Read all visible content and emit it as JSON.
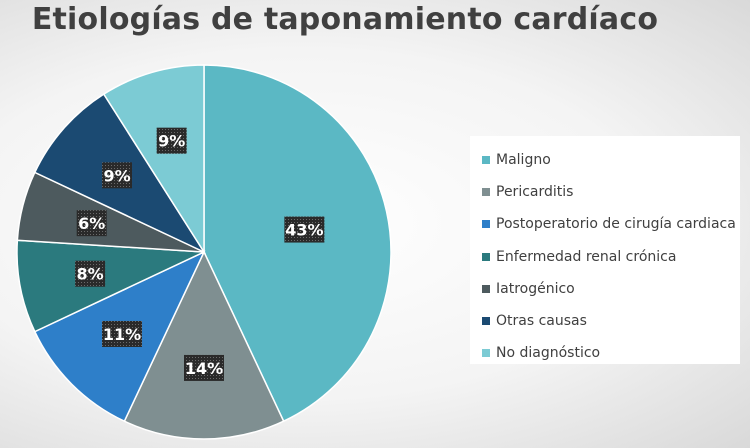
{
  "chart_data": {
    "type": "pie",
    "title": "Etiologías de taponamiento cardíaco",
    "legend_position": "right",
    "categories": [
      "Maligno",
      "Pericarditis",
      "Postoperatorio de cirugía cardiaca",
      "Enfermedad renal crónica",
      "Iatrogénico",
      "Otras causas",
      "No diagnóstico"
    ],
    "values": [
      43,
      14,
      11,
      8,
      6,
      9,
      9
    ],
    "labels": [
      "43%",
      "14%",
      "11%",
      "8%",
      "6%",
      "9%",
      "9%"
    ],
    "colors": [
      "#5bb8c4",
      "#7f8f91",
      "#2e7fc9",
      "#2b7a7e",
      "#4d5a5e",
      "#1b4a72",
      "#7ccbd4"
    ]
  }
}
